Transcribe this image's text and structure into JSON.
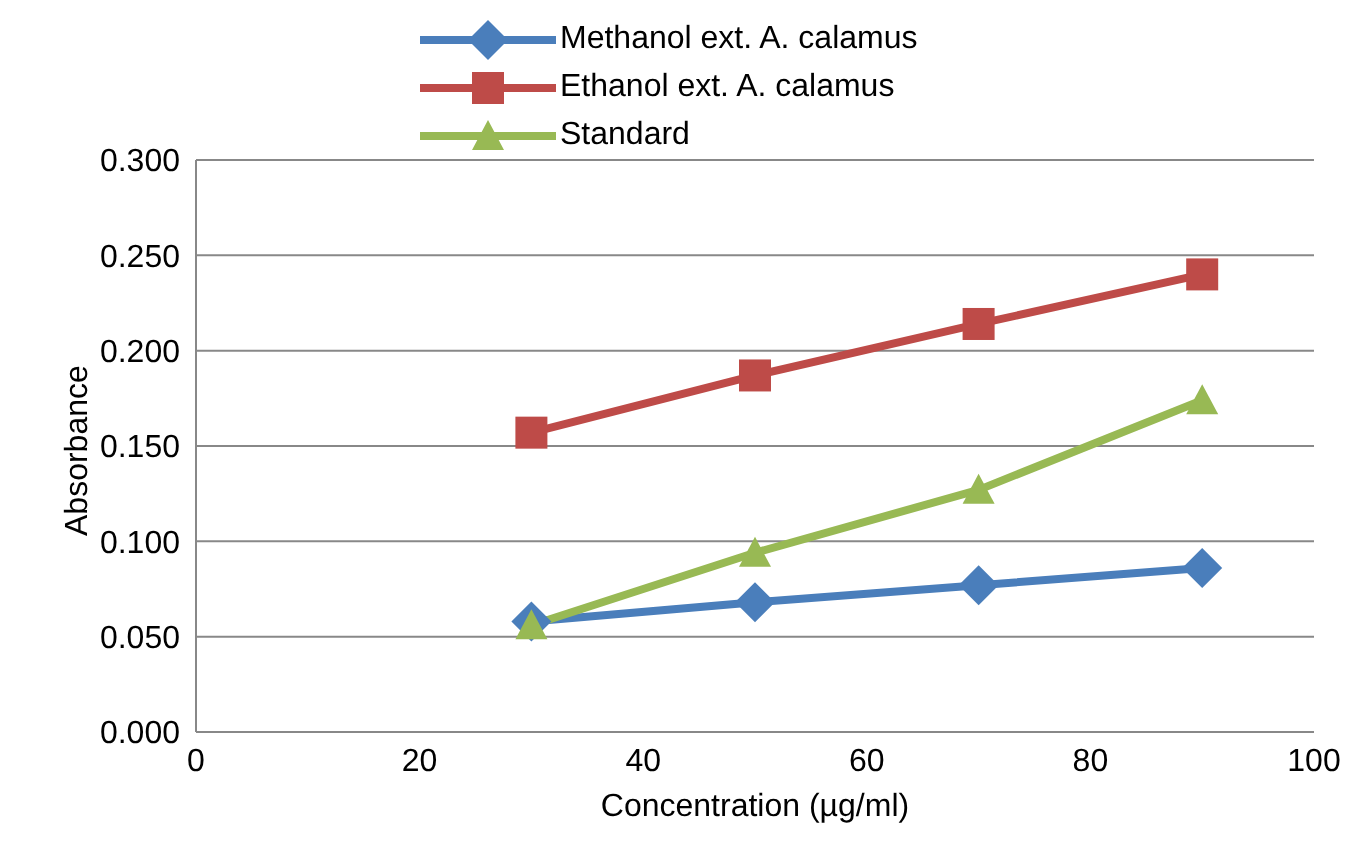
{
  "chart_data": {
    "type": "line",
    "xlabel": "Concentration  (µg/ml)",
    "ylabel": "Absorbance",
    "x": [
      30,
      50,
      70,
      90
    ],
    "series": [
      {
        "name": "Methanol ext. A. calamus",
        "color": "#4a7ebb",
        "marker": "diamond",
        "values": [
          0.058,
          0.068,
          0.077,
          0.086
        ]
      },
      {
        "name": "Ethanol ext. A. calamus",
        "color": "#be4b48",
        "marker": "square",
        "values": [
          0.157,
          0.187,
          0.214,
          0.24
        ]
      },
      {
        "name": "Standard",
        "color": "#98b954",
        "marker": "triangle",
        "values": [
          0.056,
          0.094,
          0.127,
          0.174
        ]
      }
    ],
    "xlim": [
      0,
      100
    ],
    "xticks": [
      0,
      20,
      40,
      60,
      80,
      100
    ],
    "ylim": [
      0,
      0.3
    ],
    "yticks": [
      {
        "value": 0,
        "label": "0.000"
      },
      {
        "value": 0.05,
        "label": "0.050"
      },
      {
        "value": 0.1,
        "label": "0.100"
      },
      {
        "value": 0.15,
        "label": "0.150"
      },
      {
        "value": 0.2,
        "label": "0.200"
      },
      {
        "value": 0.25,
        "label": "0.250"
      },
      {
        "value": 0.3,
        "label": "0.300"
      }
    ],
    "grid": "y",
    "legend": "top",
    "line_style": "solid"
  }
}
